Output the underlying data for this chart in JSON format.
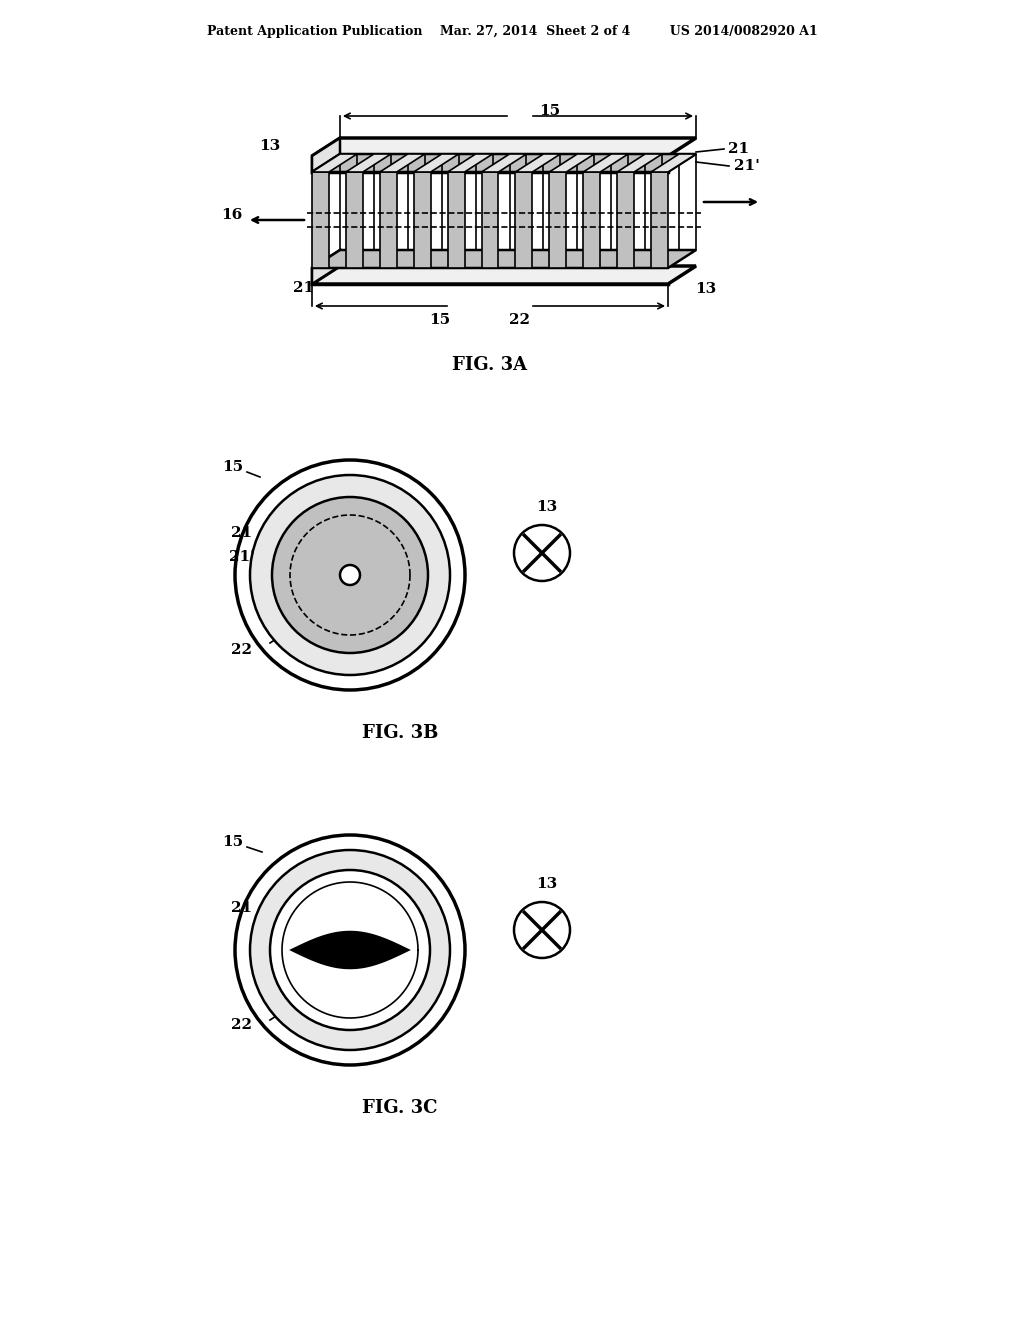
{
  "bg_color": "#ffffff",
  "line_color": "#000000",
  "gray_fill": "#c0c0c0",
  "light_gray": "#e4e4e4",
  "very_light_gray": "#f0f0f0",
  "wall_gray": "#e8e8e8",
  "header": "Patent Application Publication    Mar. 27, 2014  Sheet 2 of 4         US 2014/0082920 A1",
  "fig3a_label": "FIG. 3A",
  "fig3b_label": "FIG. 3B",
  "fig3c_label": "FIG. 3C"
}
